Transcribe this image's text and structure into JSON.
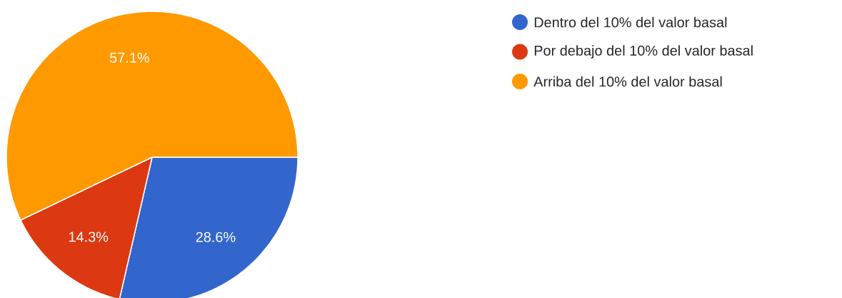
{
  "chart_data": {
    "type": "pie",
    "categories": [
      "Dentro del 10% del valor basal",
      "Por debajo del 10% del valor basal",
      "Arriba del 10% del valor basal"
    ],
    "values": [
      28.6,
      14.3,
      57.1
    ],
    "value_labels": [
      "28.6%",
      "14.3%",
      "57.1%"
    ],
    "colors": [
      "#3366cc",
      "#dc3912",
      "#ff9900"
    ],
    "legend": "top right"
  }
}
